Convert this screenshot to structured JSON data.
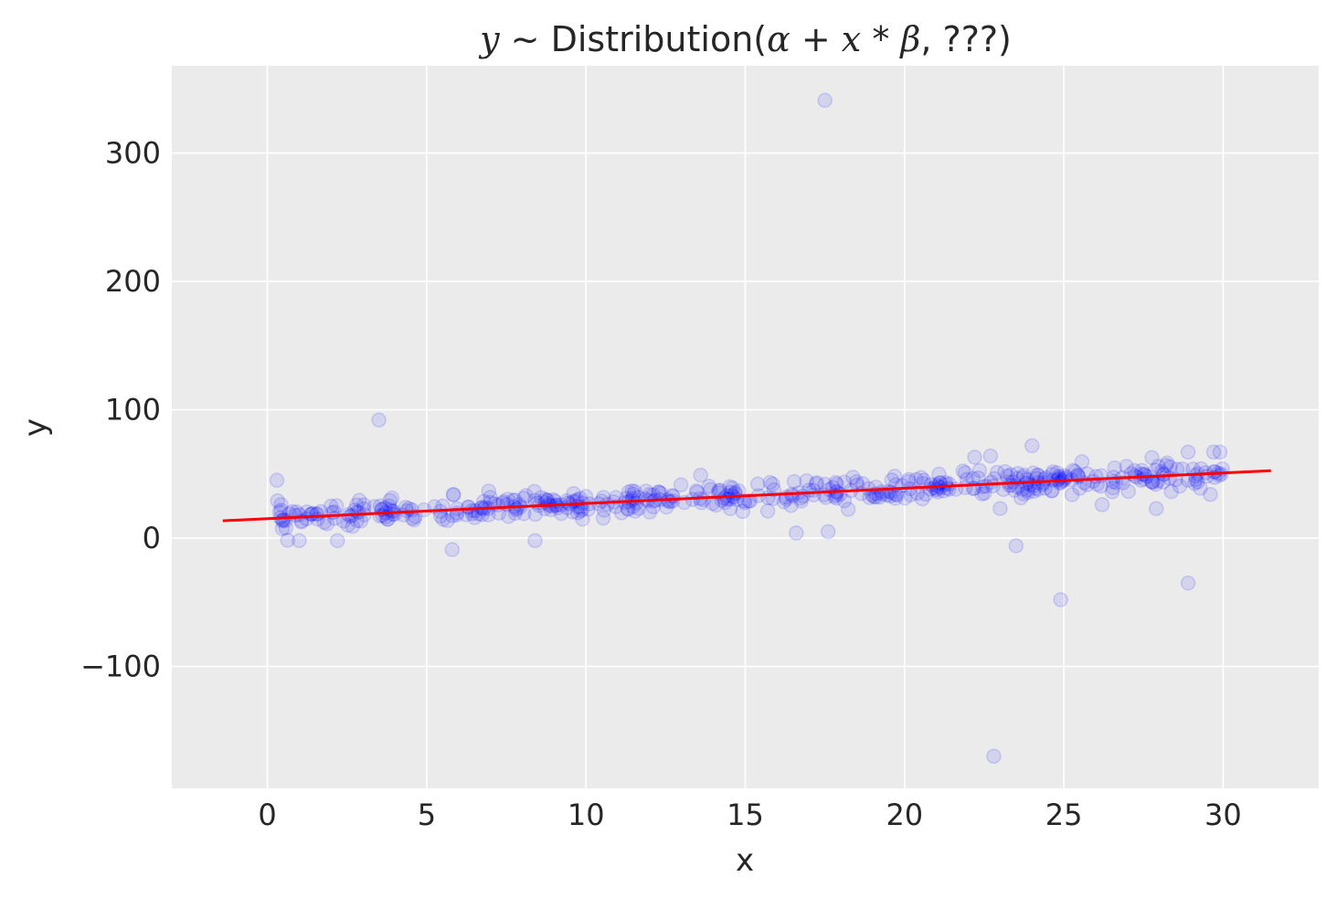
{
  "chart_data": {
    "type": "scatter",
    "title": {
      "y": "y",
      "tilde": " ~ ",
      "dist": "Distribution(",
      "alpha": "α",
      "plus": " + ",
      "x": "x",
      "times": " * ",
      "beta": "β",
      "rest": ", ???)"
    },
    "xlabel": "x",
    "ylabel": "y",
    "xlim": [
      -3,
      33
    ],
    "ylim": [
      -195,
      368
    ],
    "xticks": [
      0,
      5,
      10,
      15,
      20,
      25,
      30
    ],
    "yticks": [
      -100,
      0,
      100,
      200,
      300
    ],
    "xtick_labels": [
      "0",
      "5",
      "10",
      "15",
      "20",
      "25",
      "30"
    ],
    "ytick_labels": [
      "−100",
      "0",
      "100",
      "200",
      "300"
    ],
    "grid": true,
    "colors": {
      "background": "#ebebeb",
      "grid": "#ffffff",
      "points": "#0000ff",
      "line": "#ff0000",
      "text": "#262626"
    },
    "fit_line": {
      "x": [
        -1.4,
        31.5
      ],
      "y": [
        13.5,
        52.5
      ]
    },
    "points": {
      "x_range": [
        0.3,
        30
      ],
      "count": 500,
      "trend": "y ≈ 15 + 1.2 * x",
      "spread": 5,
      "outliers": [
        {
          "x": 17.5,
          "y": 341
        },
        {
          "x": 3.5,
          "y": 92
        },
        {
          "x": 22.8,
          "y": -170
        },
        {
          "x": 24.9,
          "y": -48
        },
        {
          "x": 28.9,
          "y": -35
        },
        {
          "x": 23.5,
          "y": -6
        },
        {
          "x": 5.8,
          "y": -9
        },
        {
          "x": 8.4,
          "y": -2
        },
        {
          "x": 1.0,
          "y": -2
        },
        {
          "x": 2.2,
          "y": -2
        },
        {
          "x": 16.6,
          "y": 4
        },
        {
          "x": 17.6,
          "y": 5
        },
        {
          "x": 24.0,
          "y": 72
        },
        {
          "x": 22.2,
          "y": 63
        },
        {
          "x": 22.7,
          "y": 64
        },
        {
          "x": 28.9,
          "y": 67
        },
        {
          "x": 29.7,
          "y": 67
        },
        {
          "x": 29.9,
          "y": 67
        },
        {
          "x": 0.3,
          "y": 45
        },
        {
          "x": 13.6,
          "y": 49
        },
        {
          "x": 27.9,
          "y": 23
        },
        {
          "x": 26.2,
          "y": 26
        },
        {
          "x": 29.6,
          "y": 34
        },
        {
          "x": 23.0,
          "y": 23
        }
      ]
    }
  }
}
